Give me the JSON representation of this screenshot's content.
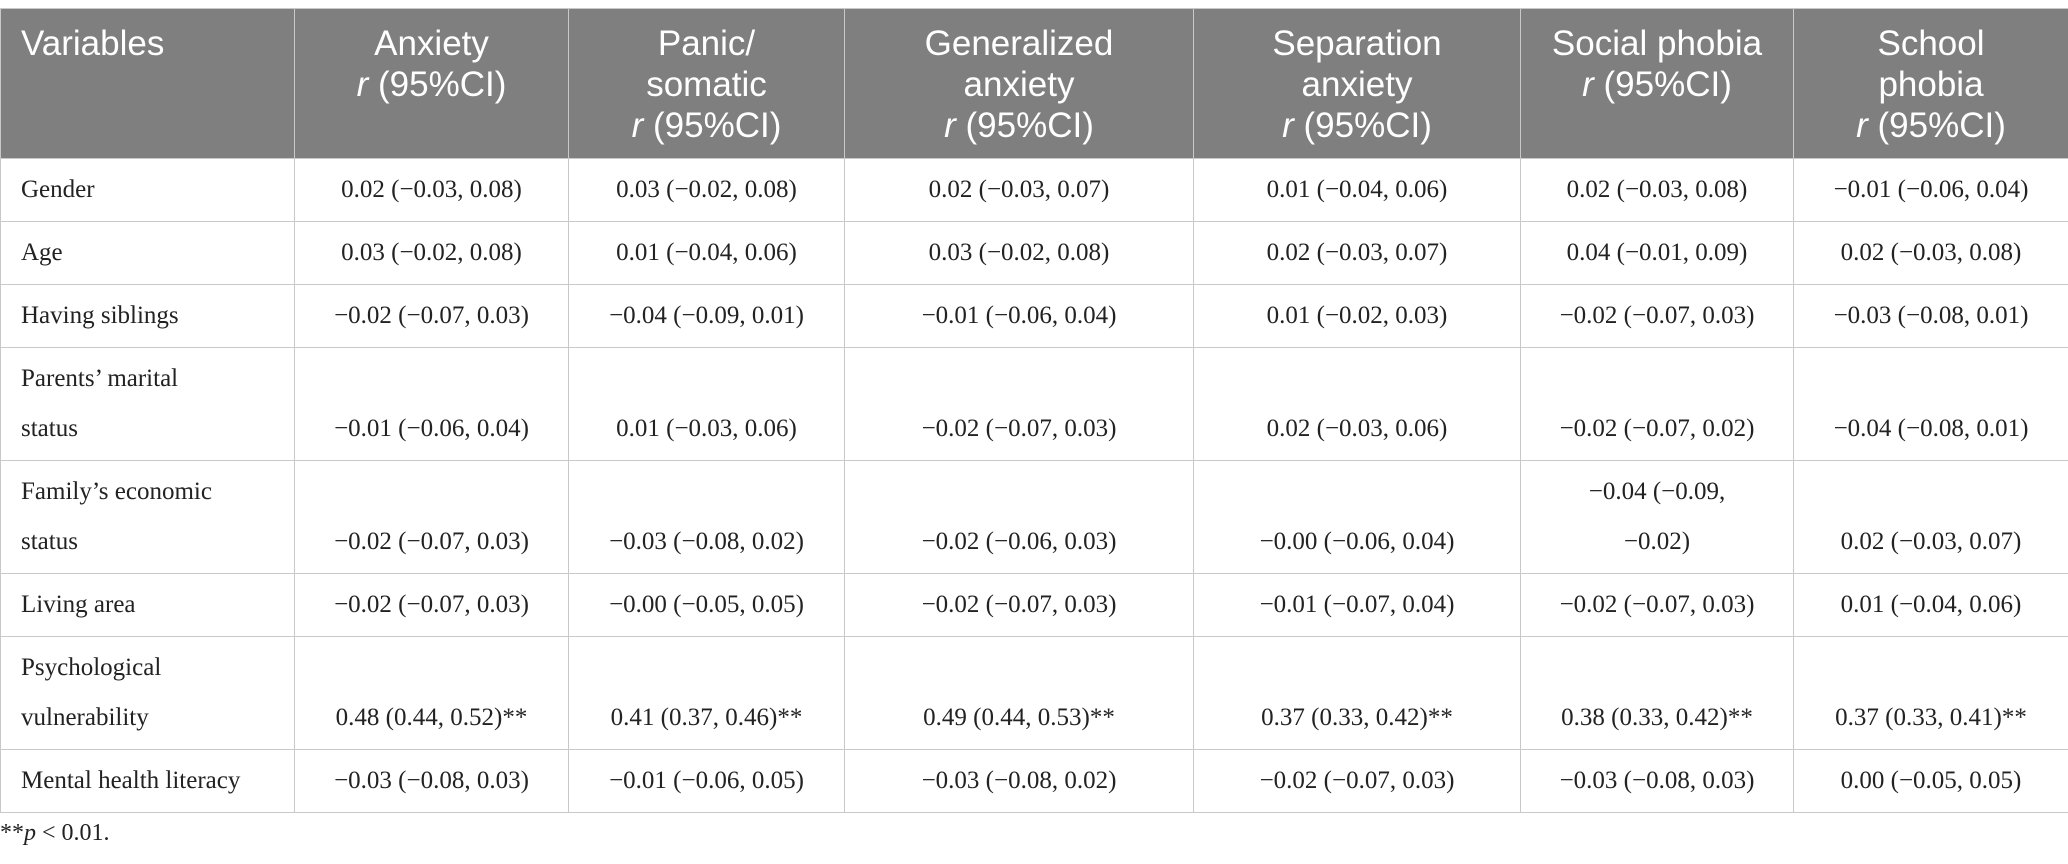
{
  "header": {
    "variables": "Variables",
    "stat": "r (95%CI)",
    "columns": [
      {
        "lines": [
          "Anxiety"
        ]
      },
      {
        "lines": [
          "Panic/",
          "somatic"
        ]
      },
      {
        "lines": [
          "Generalized",
          "anxiety"
        ]
      },
      {
        "lines": [
          "Separation",
          "anxiety"
        ]
      },
      {
        "lines": [
          "Social phobia"
        ]
      },
      {
        "lines": [
          "School",
          "phobia"
        ]
      }
    ]
  },
  "rows": [
    {
      "label": [
        "Gender"
      ],
      "cells": [
        "0.02 (−0.03, 0.08)",
        "0.03 (−0.02, 0.08)",
        "0.02 (−0.03, 0.07)",
        "0.01 (−0.04, 0.06)",
        "0.02 (−0.03, 0.08)",
        "−0.01 (−0.06, 0.04)"
      ]
    },
    {
      "label": [
        "Age"
      ],
      "cells": [
        "0.03 (−0.02, 0.08)",
        "0.01 (−0.04, 0.06)",
        "0.03 (−0.02, 0.08)",
        "0.02 (−0.03, 0.07)",
        "0.04 (−0.01, 0.09)",
        "0.02 (−0.03, 0.08)"
      ]
    },
    {
      "label": [
        "Having siblings"
      ],
      "cells": [
        "−0.02 (−0.07, 0.03)",
        "−0.04 (−0.09, 0.01)",
        "−0.01 (−0.06, 0.04)",
        "0.01 (−0.02, 0.03)",
        "−0.02 (−0.07, 0.03)",
        "−0.03 (−0.08, 0.01)"
      ]
    },
    {
      "label": [
        "Parents’ marital",
        "status"
      ],
      "cells": [
        "−0.01 (−0.06, 0.04)",
        "0.01 (−0.03, 0.06)",
        "−0.02 (−0.07, 0.03)",
        "0.02 (−0.03, 0.06)",
        "−0.02 (−0.07, 0.02)",
        "−0.04 (−0.08, 0.01)"
      ]
    },
    {
      "label": [
        "Family’s economic",
        "status"
      ],
      "cells": [
        "−0.02 (−0.07, 0.03)",
        "−0.03 (−0.08, 0.02)",
        "−0.02 (−0.06, 0.03)",
        "−0.00 (−0.06, 0.04)",
        [
          "−0.04 (−0.09,",
          "−0.02)"
        ],
        "0.02 (−0.03, 0.07)"
      ]
    },
    {
      "label": [
        "Living area"
      ],
      "cells": [
        "−0.02 (−0.07, 0.03)",
        "−0.00 (−0.05, 0.05)",
        "−0.02 (−0.07, 0.03)",
        "−0.01 (−0.07, 0.04)",
        "−0.02 (−0.07, 0.03)",
        "0.01 (−0.04, 0.06)"
      ]
    },
    {
      "label": [
        "Psychological",
        "vulnerability"
      ],
      "cells": [
        "0.48 (0.44, 0.52)**",
        "0.41 (0.37, 0.46)**",
        "0.49 (0.44, 0.53)**",
        "0.37 (0.33, 0.42)**",
        "0.38 (0.33, 0.42)**",
        "0.37 (0.33, 0.41)**"
      ]
    },
    {
      "label": [
        "Mental health literacy"
      ],
      "cells": [
        "−0.03 (−0.08, 0.03)",
        "−0.01 (−0.06, 0.05)",
        "−0.03 (−0.08, 0.02)",
        "−0.02 (−0.07, 0.03)",
        "−0.03 (−0.08, 0.03)",
        "0.00 (−0.05, 0.05)"
      ]
    }
  ],
  "footnote": {
    "stars": "**",
    "p": "p",
    "rest": " < 0.01."
  }
}
